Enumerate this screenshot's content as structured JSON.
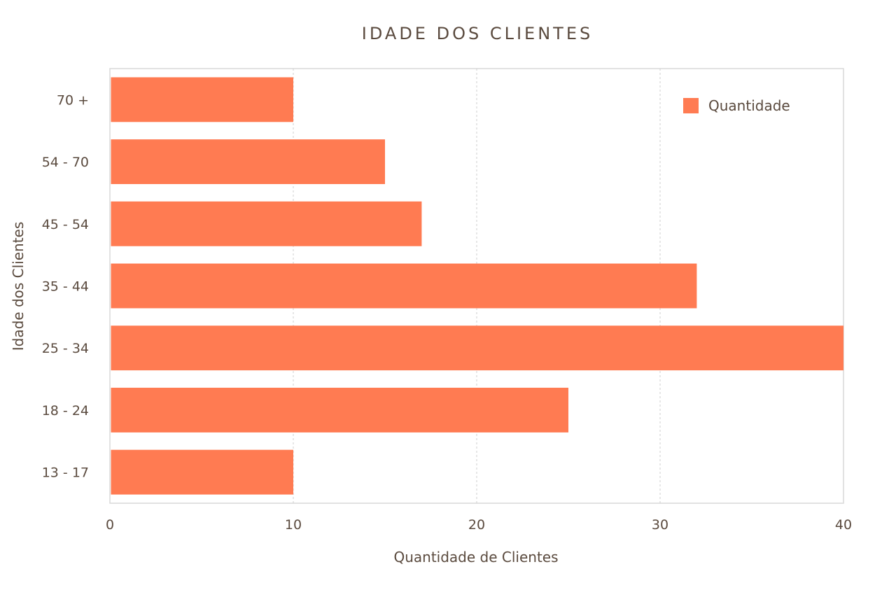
{
  "chart_data": {
    "type": "bar",
    "orientation": "horizontal",
    "title": "IDADE DOS CLIENTES",
    "xlabel": "Quantidade de Clientes",
    "ylabel": "Idade dos Clientes",
    "categories": [
      "13 - 17",
      "18 - 24",
      "25 - 34",
      "35 - 44",
      "45 - 54",
      "54 - 70",
      "70 +"
    ],
    "series": [
      {
        "name": "Quantidade",
        "values": [
          10,
          25,
          40,
          32,
          17,
          15,
          10
        ],
        "color": "#ff7b52"
      }
    ],
    "xlim": [
      0,
      40
    ],
    "xticks": [
      0,
      10,
      20,
      30,
      40
    ],
    "grid": "vertical dashed",
    "legend_position": "top-right"
  }
}
